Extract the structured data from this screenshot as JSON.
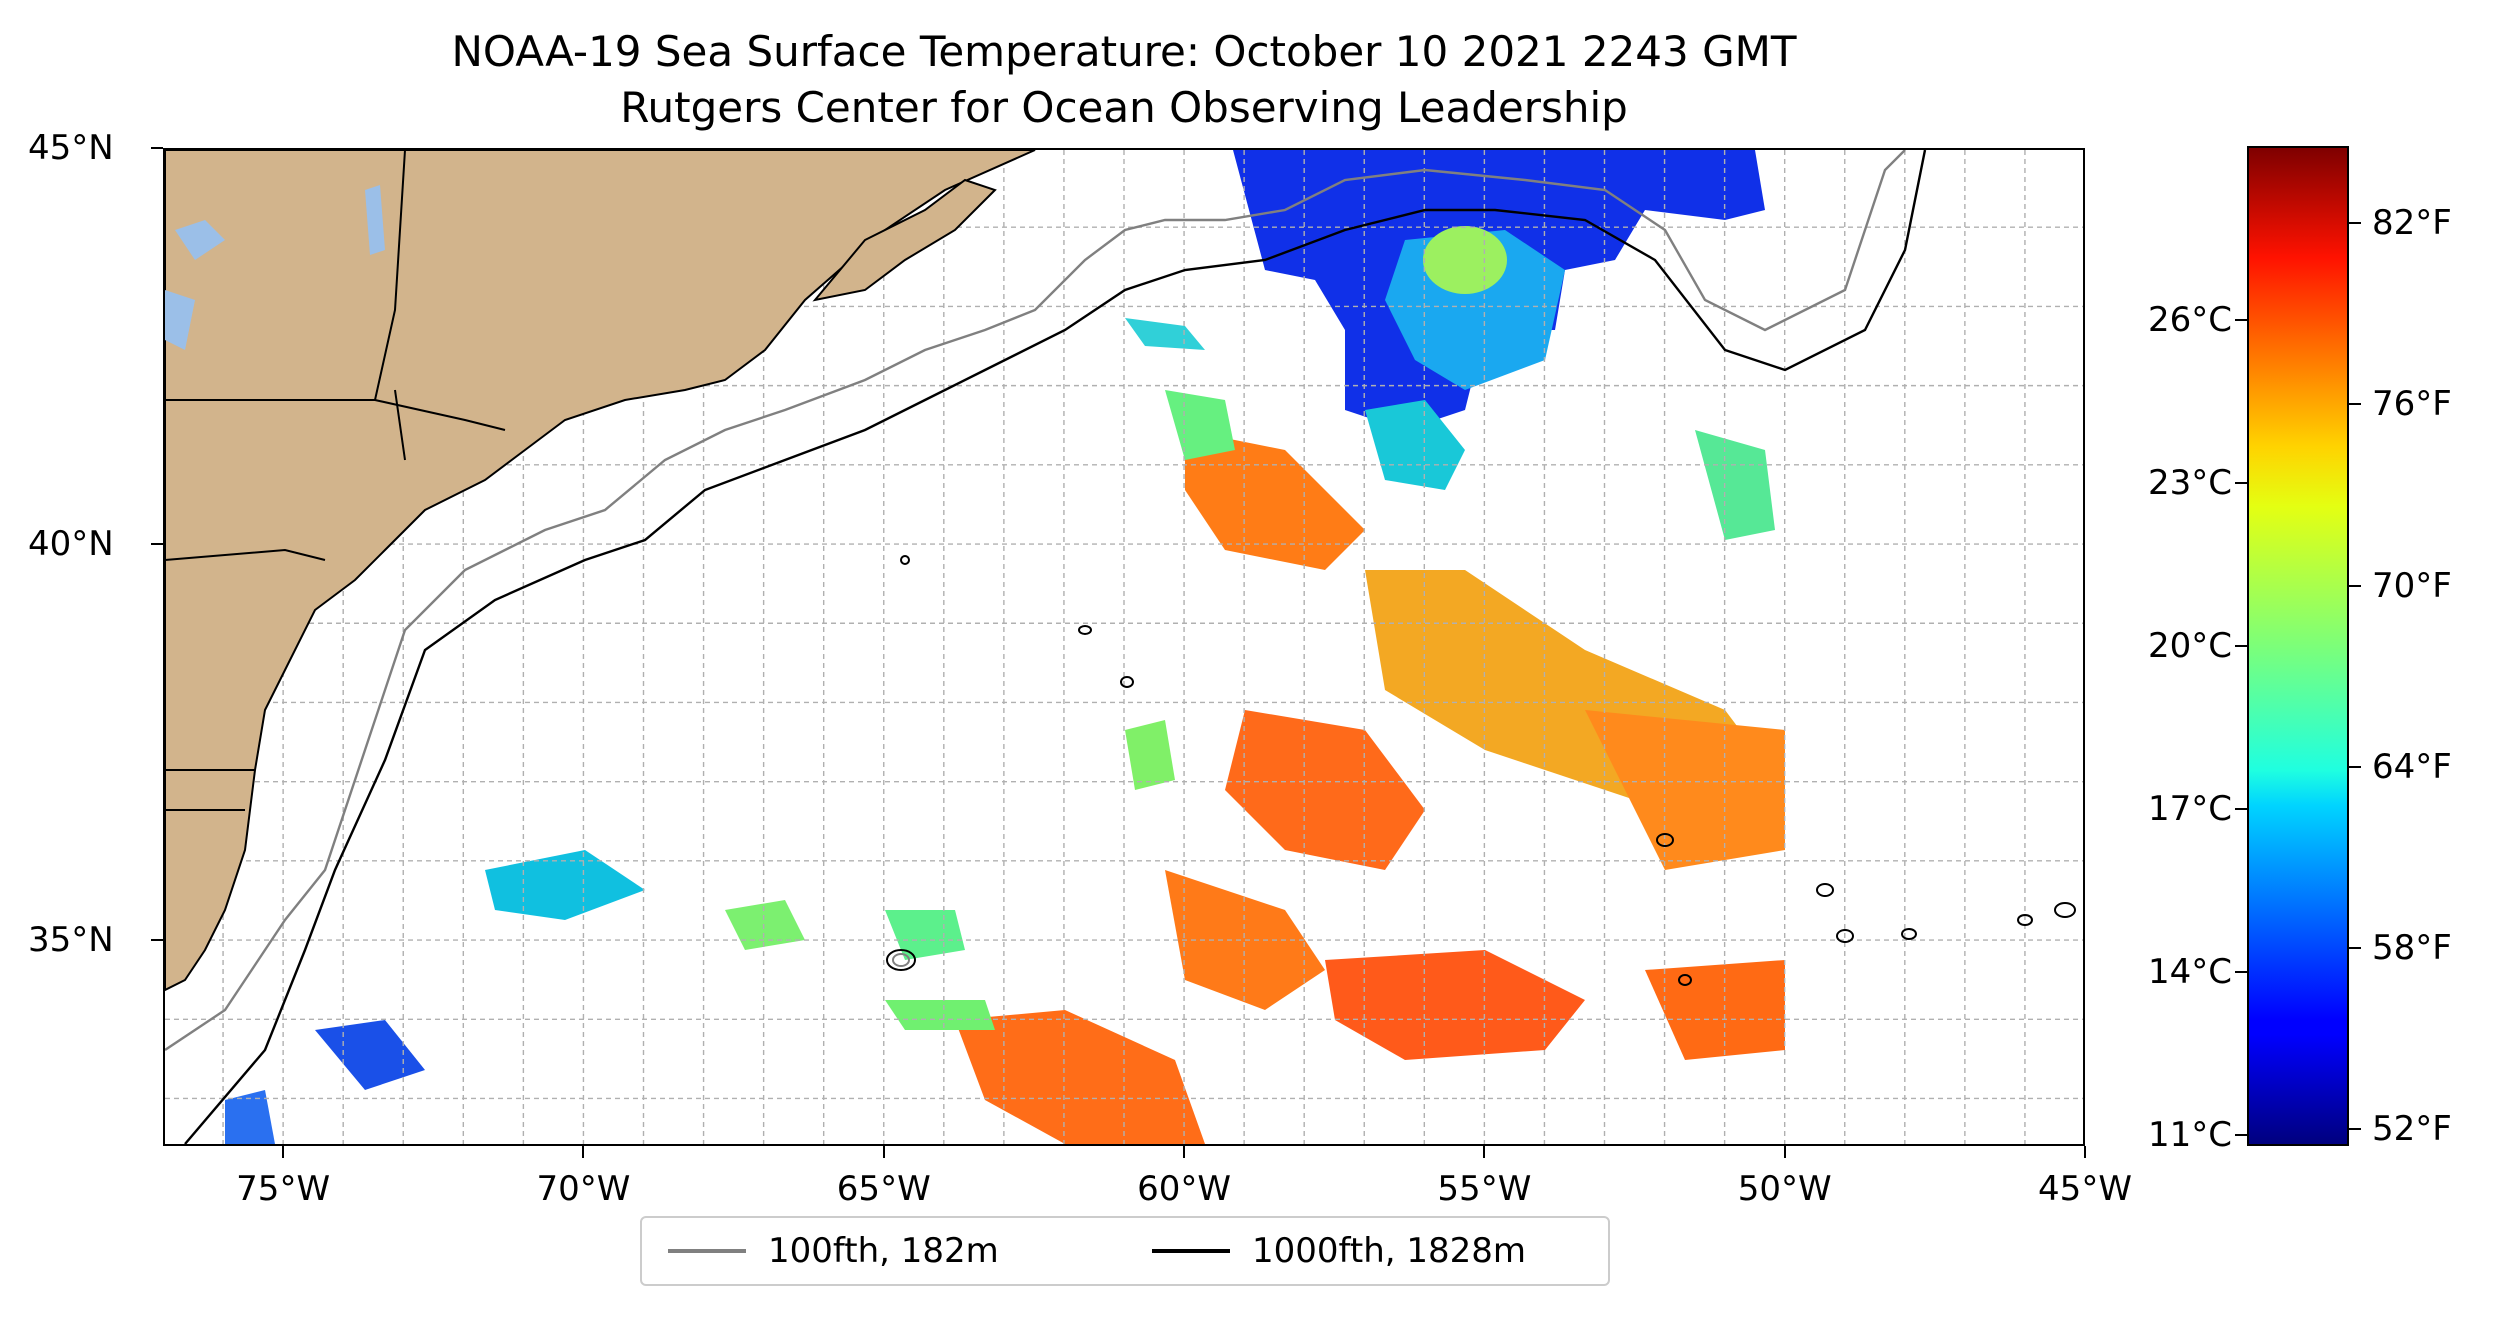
{
  "title": {
    "line1": "NOAA-19 Sea Surface Temperature: October 10 2021 2243 GMT",
    "line2": "Rutgers Center for Ocean Observing Leadership"
  },
  "map": {
    "lon_range": [
      -77,
      -45
    ],
    "lat_range": [
      32.4,
      45
    ],
    "lat_ticks": [
      {
        "value": 35,
        "label": "35°N"
      },
      {
        "value": 40,
        "label": "40°N"
      },
      {
        "value": 45,
        "label": "45°N"
      }
    ],
    "lon_ticks": [
      {
        "value": -75,
        "label": "75°W"
      },
      {
        "value": -70,
        "label": "70°W"
      },
      {
        "value": -65,
        "label": "65°W"
      },
      {
        "value": -60,
        "label": "60°W"
      },
      {
        "value": -55,
        "label": "55°W"
      },
      {
        "value": -50,
        "label": "50°W"
      },
      {
        "value": -45,
        "label": "45°W"
      }
    ],
    "gridlines": true,
    "grid_step_deg": 1,
    "colors": {
      "land": "#d2b48c",
      "lakes": "#9bbfe8",
      "isobath_100": "#808080",
      "isobath_1000": "#000000"
    }
  },
  "legend": {
    "placement": "bottom-center",
    "items": [
      {
        "label": "100fth, 182m",
        "color": "#808080"
      },
      {
        "label": "1000fth, 1828m",
        "color": "#000000"
      }
    ]
  },
  "colorbar": {
    "colormap": "jet",
    "range_celsius": [
      10.8,
      29.2
    ],
    "celsius_ticks": [
      {
        "value": 11,
        "label": "11°C"
      },
      {
        "value": 14,
        "label": "14°C"
      },
      {
        "value": 17,
        "label": "17°C"
      },
      {
        "value": 20,
        "label": "20°C"
      },
      {
        "value": 23,
        "label": "23°C"
      },
      {
        "value": 26,
        "label": "26°C"
      }
    ],
    "fahrenheit_ticks": [
      {
        "value": 52,
        "label": "52°F"
      },
      {
        "value": 58,
        "label": "58°F"
      },
      {
        "value": 64,
        "label": "64°F"
      },
      {
        "value": 70,
        "label": "70°F"
      },
      {
        "value": 76,
        "label": "76°F"
      },
      {
        "value": 82,
        "label": "82°F"
      }
    ]
  }
}
